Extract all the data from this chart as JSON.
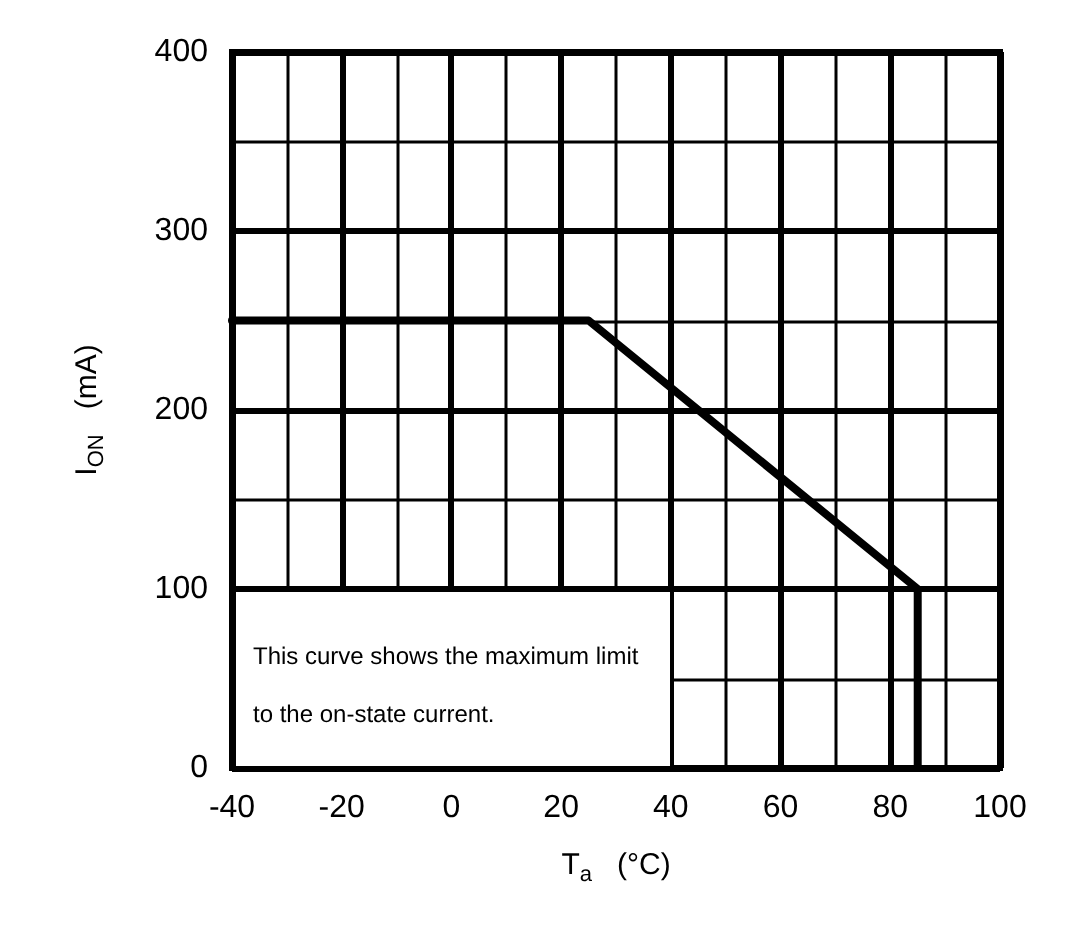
{
  "chart_data": {
    "type": "line",
    "xlabel": "T$_{a}$   (°C)",
    "ylabel": "I$_{ON}$   (mA)",
    "x": [
      -40,
      25,
      85,
      85
    ],
    "series": [
      {
        "color": "#000000",
        "values": [
          250,
          250,
          100,
          0
        ]
      }
    ],
    "xlim": [
      -40,
      100
    ],
    "xticks": [
      -40,
      -20,
      0,
      20,
      40,
      60,
      80,
      100
    ],
    "ylim": [
      0,
      400
    ],
    "yticks": [
      0,
      100,
      200,
      300,
      400
    ],
    "grid": true,
    "marker": "none",
    "line_style": "solid",
    "annotations": [
      "This curve shows the maximum limit to the on-state current."
    ]
  }
}
